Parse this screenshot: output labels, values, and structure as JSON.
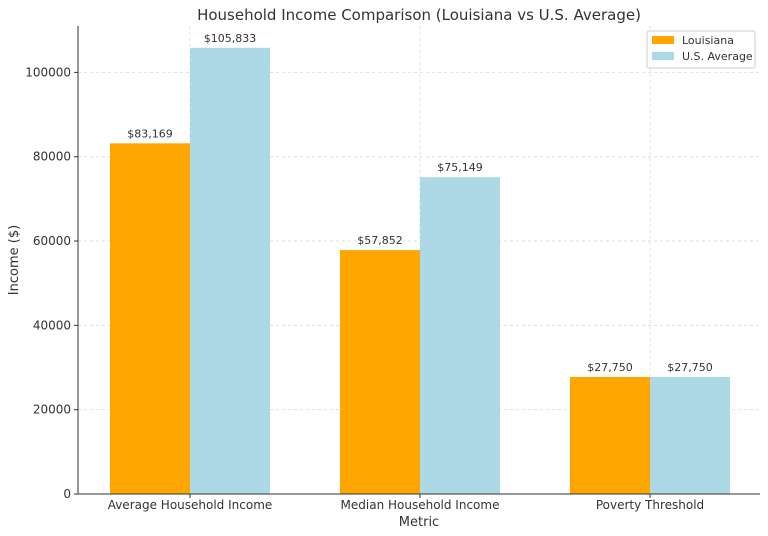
{
  "chart_data": {
    "type": "bar",
    "title": "Household Income Comparison (Louisiana vs U.S. Average)",
    "xlabel": "Metric",
    "ylabel": "Income ($)",
    "categories": [
      "Average Household Income",
      "Median Household Income",
      "Poverty Threshold"
    ],
    "series": [
      {
        "name": "Louisiana",
        "color": "#FFA500",
        "values": [
          83169,
          57852,
          27750
        ],
        "labels": [
          "$83,169",
          "$57,852",
          "$27,750"
        ]
      },
      {
        "name": "U.S. Average",
        "color": "#ADD8E6",
        "values": [
          105833,
          75149,
          27750
        ],
        "labels": [
          "$105,833",
          "$75,149",
          "$27,750"
        ]
      }
    ],
    "ylim": [
      0,
      111000
    ],
    "yticks": [
      0,
      20000,
      40000,
      60000,
      80000,
      100000
    ],
    "ytick_labels": [
      "0",
      "20000",
      "40000",
      "60000",
      "80000",
      "100000"
    ],
    "grid": true,
    "legend_position": "top-right"
  }
}
